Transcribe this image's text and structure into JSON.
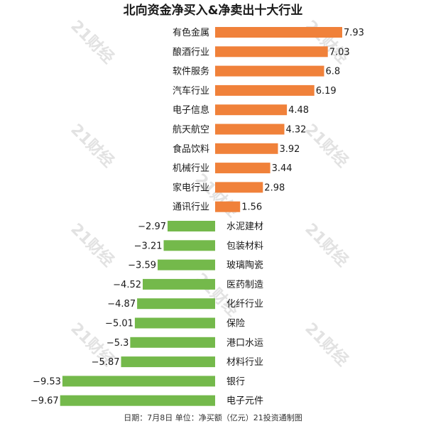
{
  "chart_data": {
    "type": "bar",
    "orientation": "horizontal",
    "title": "北向资金净买入&净卖出十大行业",
    "categories": [
      "有色金属",
      "酿酒行业",
      "软件服务",
      "汽车行业",
      "电子信息",
      "航天航空",
      "食品饮料",
      "机械行业",
      "家电行业",
      "通讯行业",
      "水泥建材",
      "包装材料",
      "玻璃陶瓷",
      "医药制造",
      "化纤行业",
      "保险",
      "港口水运",
      "材料行业",
      "银行",
      "电子元件"
    ],
    "values": [
      7.93,
      7.03,
      6.8,
      6.19,
      4.48,
      4.32,
      3.92,
      3.44,
      2.98,
      1.56,
      -2.97,
      -3.21,
      -3.59,
      -4.52,
      -4.87,
      -5.01,
      -5.3,
      -5.87,
      -9.53,
      -9.67
    ],
    "value_labels": [
      "7.93",
      "7.03",
      "6.8",
      "6.19",
      "4.48",
      "4.32",
      "3.92",
      "3.44",
      "2.98",
      "1.56",
      "−2.97",
      "−3.21",
      "−3.59",
      "−4.52",
      "−4.87",
      "−5.01",
      "−5.3",
      "−5.87",
      "−9.53",
      "−9.67"
    ],
    "colors": {
      "positive": "#f0813a",
      "negative": "#74b94b"
    },
    "xlim": [
      -9.67,
      7.93
    ],
    "grid": false,
    "legend": "none"
  },
  "footer": "日期：7月8日 单位：净买额（亿元）21投资通制图",
  "watermark": "21财经"
}
